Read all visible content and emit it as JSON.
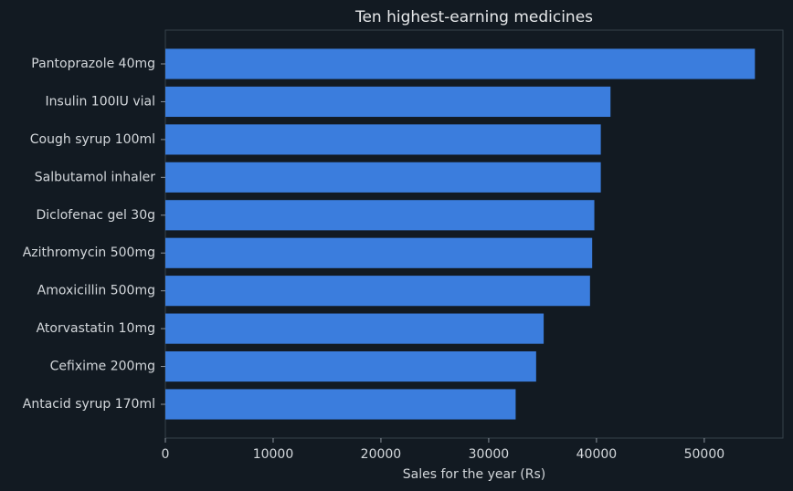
{
  "chart_data": {
    "type": "barh",
    "title": "Ten highest-earning medicines",
    "xlabel": "Sales for the year (Rs)",
    "categories": [
      "Pantoprazole 40mg",
      "Insulin 100IU vial",
      "Cough syrup 100ml",
      "Salbutamol inhaler",
      "Diclofenac gel 30g",
      "Azithromycin 500mg",
      "Amoxicillin 500mg",
      "Atorvastatin 10mg",
      "Cefixime 200mg",
      "Antacid syrup 170ml"
    ],
    "values": [
      54700,
      41300,
      40400,
      40400,
      39800,
      39600,
      39400,
      35100,
      34400,
      32500
    ],
    "color": "#3b7ddd",
    "xlim": [
      0,
      57300
    ],
    "xticks": [
      0,
      10000,
      20000,
      30000,
      40000,
      50000
    ],
    "grid": false
  }
}
